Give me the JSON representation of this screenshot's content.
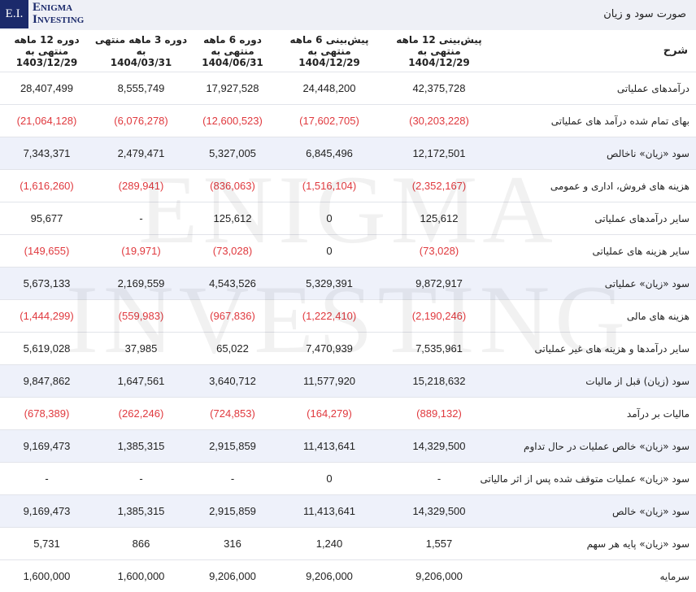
{
  "header": {
    "title": "صورت سود و زیان",
    "logo": {
      "mark": "E.I.",
      "line1": "Enigma",
      "line2": "Investing"
    }
  },
  "watermark": {
    "line1": "ENIGMA",
    "line2": "INVESTING"
  },
  "table": {
    "columns": [
      "شرح",
      {
        "period": "پیش‌بینی 12 ماهه منتهی به",
        "date": "1404/12/29"
      },
      {
        "period": "پیش‌بینی 6 ماهه منتهی به",
        "date": "1404/12/29"
      },
      {
        "period": "دوره 6 ماهه منتهی به",
        "date": "1404/06/31"
      },
      {
        "period": "دوره 3 ماهه منتهی به",
        "date": "1404/03/31"
      },
      {
        "period": "دوره 12 ماهه منتهی به",
        "date": "1403/12/29"
      }
    ],
    "rows": [
      [
        "درآمدهای عملیاتی",
        "42,375,728",
        "24,448,200",
        "17,927,528",
        "8,555,749",
        "28,407,499"
      ],
      [
        "بهای تمام شده درآمد های عملیاتی",
        "(30,203,228)",
        "(17,602,705)",
        "(12,600,523)",
        "(6,076,278)",
        "(21,064,128)"
      ],
      [
        "سود «زیان» ناخالص",
        "12,172,501",
        "6,845,496",
        "5,327,005",
        "2,479,471",
        "7,343,371"
      ],
      [
        "هزینه های فروش، اداری و عمومی",
        "(2,352,167)",
        "(1,516,104)",
        "(836,063)",
        "(289,941)",
        "(1,616,260)"
      ],
      [
        "سایر درآمدهای عملیاتی",
        "125,612",
        "0",
        "125,612",
        "-",
        "95,677"
      ],
      [
        "سایر هزینه های عملیاتی",
        "(73,028)",
        "0",
        "(73,028)",
        "(19,971)",
        "(149,655)"
      ],
      [
        "سود «زیان» عملیاتی",
        "9,872,917",
        "5,329,391",
        "4,543,526",
        "2,169,559",
        "5,673,133"
      ],
      [
        "هزینه های مالی",
        "(2,190,246)",
        "(1,222,410)",
        "(967,836)",
        "(559,983)",
        "(1,444,299)"
      ],
      [
        "سایر درآمدها و هزینه های غیر عملیاتی",
        "7,535,961",
        "7,470,939",
        "65,022",
        "37,985",
        "5,619,028"
      ],
      [
        "سود (زیان) قبل از مالیات",
        "15,218,632",
        "11,577,920",
        "3,640,712",
        "1,647,561",
        "9,847,862"
      ],
      [
        "مالیات بر درآمد",
        "(889,132)",
        "(164,279)",
        "(724,853)",
        "(262,246)",
        "(678,389)"
      ],
      [
        "سود «زیان» خالص عملیات در حال تداوم",
        "14,329,500",
        "11,413,641",
        "2,915,859",
        "1,385,315",
        "9,169,473"
      ],
      [
        "سود «زیان» عملیات متوقف شده پس از اثر مالیاتی",
        "-",
        "0",
        "-",
        "-",
        "-"
      ],
      [
        "سود «زیان» خالص",
        "14,329,500",
        "11,413,641",
        "2,915,859",
        "1,385,315",
        "9,169,473"
      ],
      [
        "سود «زیان» پایه هر سهم",
        "1,557",
        "1,240",
        "316",
        "866",
        "5,731"
      ],
      [
        "سرمایه",
        "9,206,000",
        "9,206,000",
        "9,206,000",
        "1,600,000",
        "1,600,000"
      ]
    ]
  }
}
